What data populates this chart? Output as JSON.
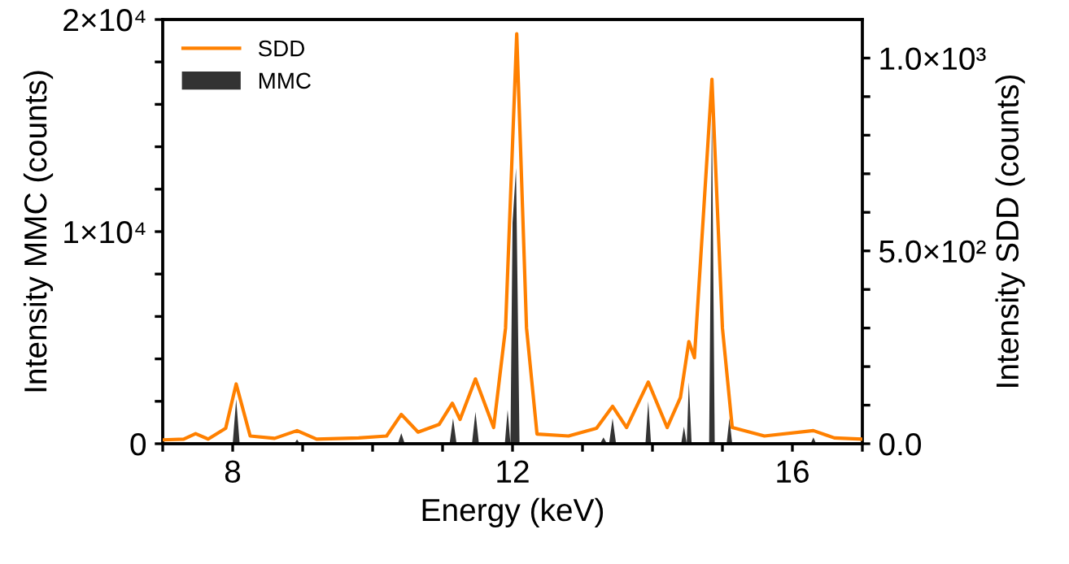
{
  "chart_data": {
    "type": "area",
    "xlabel": "Energy (keV)",
    "ylabel": "Intensity MMC (counts)",
    "y2label": "Intensity SDD (counts)",
    "xlim": [
      7,
      17
    ],
    "ylim": [
      0,
      20000
    ],
    "y2lim": [
      0,
      1100
    ],
    "xticks": [
      {
        "value": 7,
        "label": null
      },
      8,
      {
        "value": 9,
        "label": null
      },
      {
        "value": 10,
        "label": null
      },
      {
        "value": 11,
        "label": null
      },
      12,
      {
        "value": 13,
        "label": null
      },
      {
        "value": 14,
        "label": null
      },
      {
        "value": 15,
        "label": null
      },
      16,
      {
        "value": 17,
        "label": null
      }
    ],
    "yticks": [
      0,
      {
        "value": 2000,
        "label": null
      },
      {
        "value": 4000,
        "label": null
      },
      {
        "value": 6000,
        "label": null
      },
      {
        "value": 8000,
        "label": null
      },
      {
        "value": 10000,
        "label": "1×10⁴"
      },
      {
        "value": 12000,
        "label": null
      },
      {
        "value": 14000,
        "label": null
      },
      {
        "value": 16000,
        "label": null
      },
      {
        "value": 18000,
        "label": null
      },
      {
        "value": 20000,
        "label": "2×10⁴"
      }
    ],
    "y2ticks": [
      {
        "value": 0,
        "label": "0.0"
      },
      {
        "value": 100,
        "label": null
      },
      {
        "value": 200,
        "label": null
      },
      {
        "value": 300,
        "label": null
      },
      {
        "value": 400,
        "label": null
      },
      {
        "value": 500,
        "label": "5.0×10²"
      },
      {
        "value": 600,
        "label": null
      },
      {
        "value": 700,
        "label": null
      },
      {
        "value": 800,
        "label": null
      },
      {
        "value": 900,
        "label": null
      },
      {
        "value": 1000,
        "label": "1.0×10³"
      }
    ],
    "legend": "top left",
    "grid": false,
    "series": [
      {
        "name": "SDD",
        "type": "line",
        "axis": "y2",
        "color": "#ff8000",
        "x": [
          7.0,
          7.3,
          7.47,
          7.65,
          7.9,
          8.05,
          8.25,
          8.6,
          8.92,
          9.2,
          9.8,
          10.2,
          10.41,
          10.65,
          10.95,
          11.14,
          11.25,
          11.47,
          11.73,
          11.9,
          12.06,
          12.2,
          12.35,
          12.8,
          13.2,
          13.43,
          13.63,
          13.94,
          14.21,
          14.4,
          14.52,
          14.6,
          14.85,
          15.0,
          15.14,
          15.6,
          16.3,
          16.6,
          17.0
        ],
        "values": [
          10,
          12,
          26,
          12,
          40,
          155,
          20,
          14,
          34,
          12,
          15,
          20,
          76,
          30,
          50,
          105,
          63,
          168,
          42,
          300,
          1063,
          300,
          25,
          20,
          40,
          97,
          42,
          160,
          42,
          120,
          265,
          223,
          945,
          300,
          42,
          20,
          34,
          15,
          12
        ]
      },
      {
        "name": "MMC",
        "axis": "y",
        "color": "#333333",
        "x": [
          7.0,
          8.0,
          8.05,
          8.1,
          8.88,
          8.92,
          8.96,
          10.36,
          10.41,
          10.46,
          11.1,
          11.15,
          11.2,
          11.42,
          11.47,
          11.52,
          11.89,
          11.93,
          11.97,
          12.0,
          12.05,
          12.1,
          13.25,
          13.3,
          13.35,
          13.38,
          13.43,
          13.48,
          13.9,
          13.94,
          13.98,
          14.41,
          14.45,
          14.49,
          14.52,
          14.56,
          14.81,
          14.85,
          14.89,
          15.06,
          15.1,
          15.14,
          16.26,
          16.3,
          16.34,
          17.0
        ],
        "values": [
          0,
          0,
          2100,
          0,
          0,
          200,
          0,
          0,
          500,
          0,
          0,
          1200,
          0,
          0,
          1500,
          0,
          0,
          1600,
          0,
          10400,
          13000,
          0,
          0,
          300,
          0,
          0,
          1200,
          0,
          0,
          2000,
          0,
          0,
          800,
          0,
          2900,
          0,
          0,
          15900,
          0,
          0,
          1200,
          0,
          0,
          300,
          0,
          0
        ]
      }
    ]
  }
}
